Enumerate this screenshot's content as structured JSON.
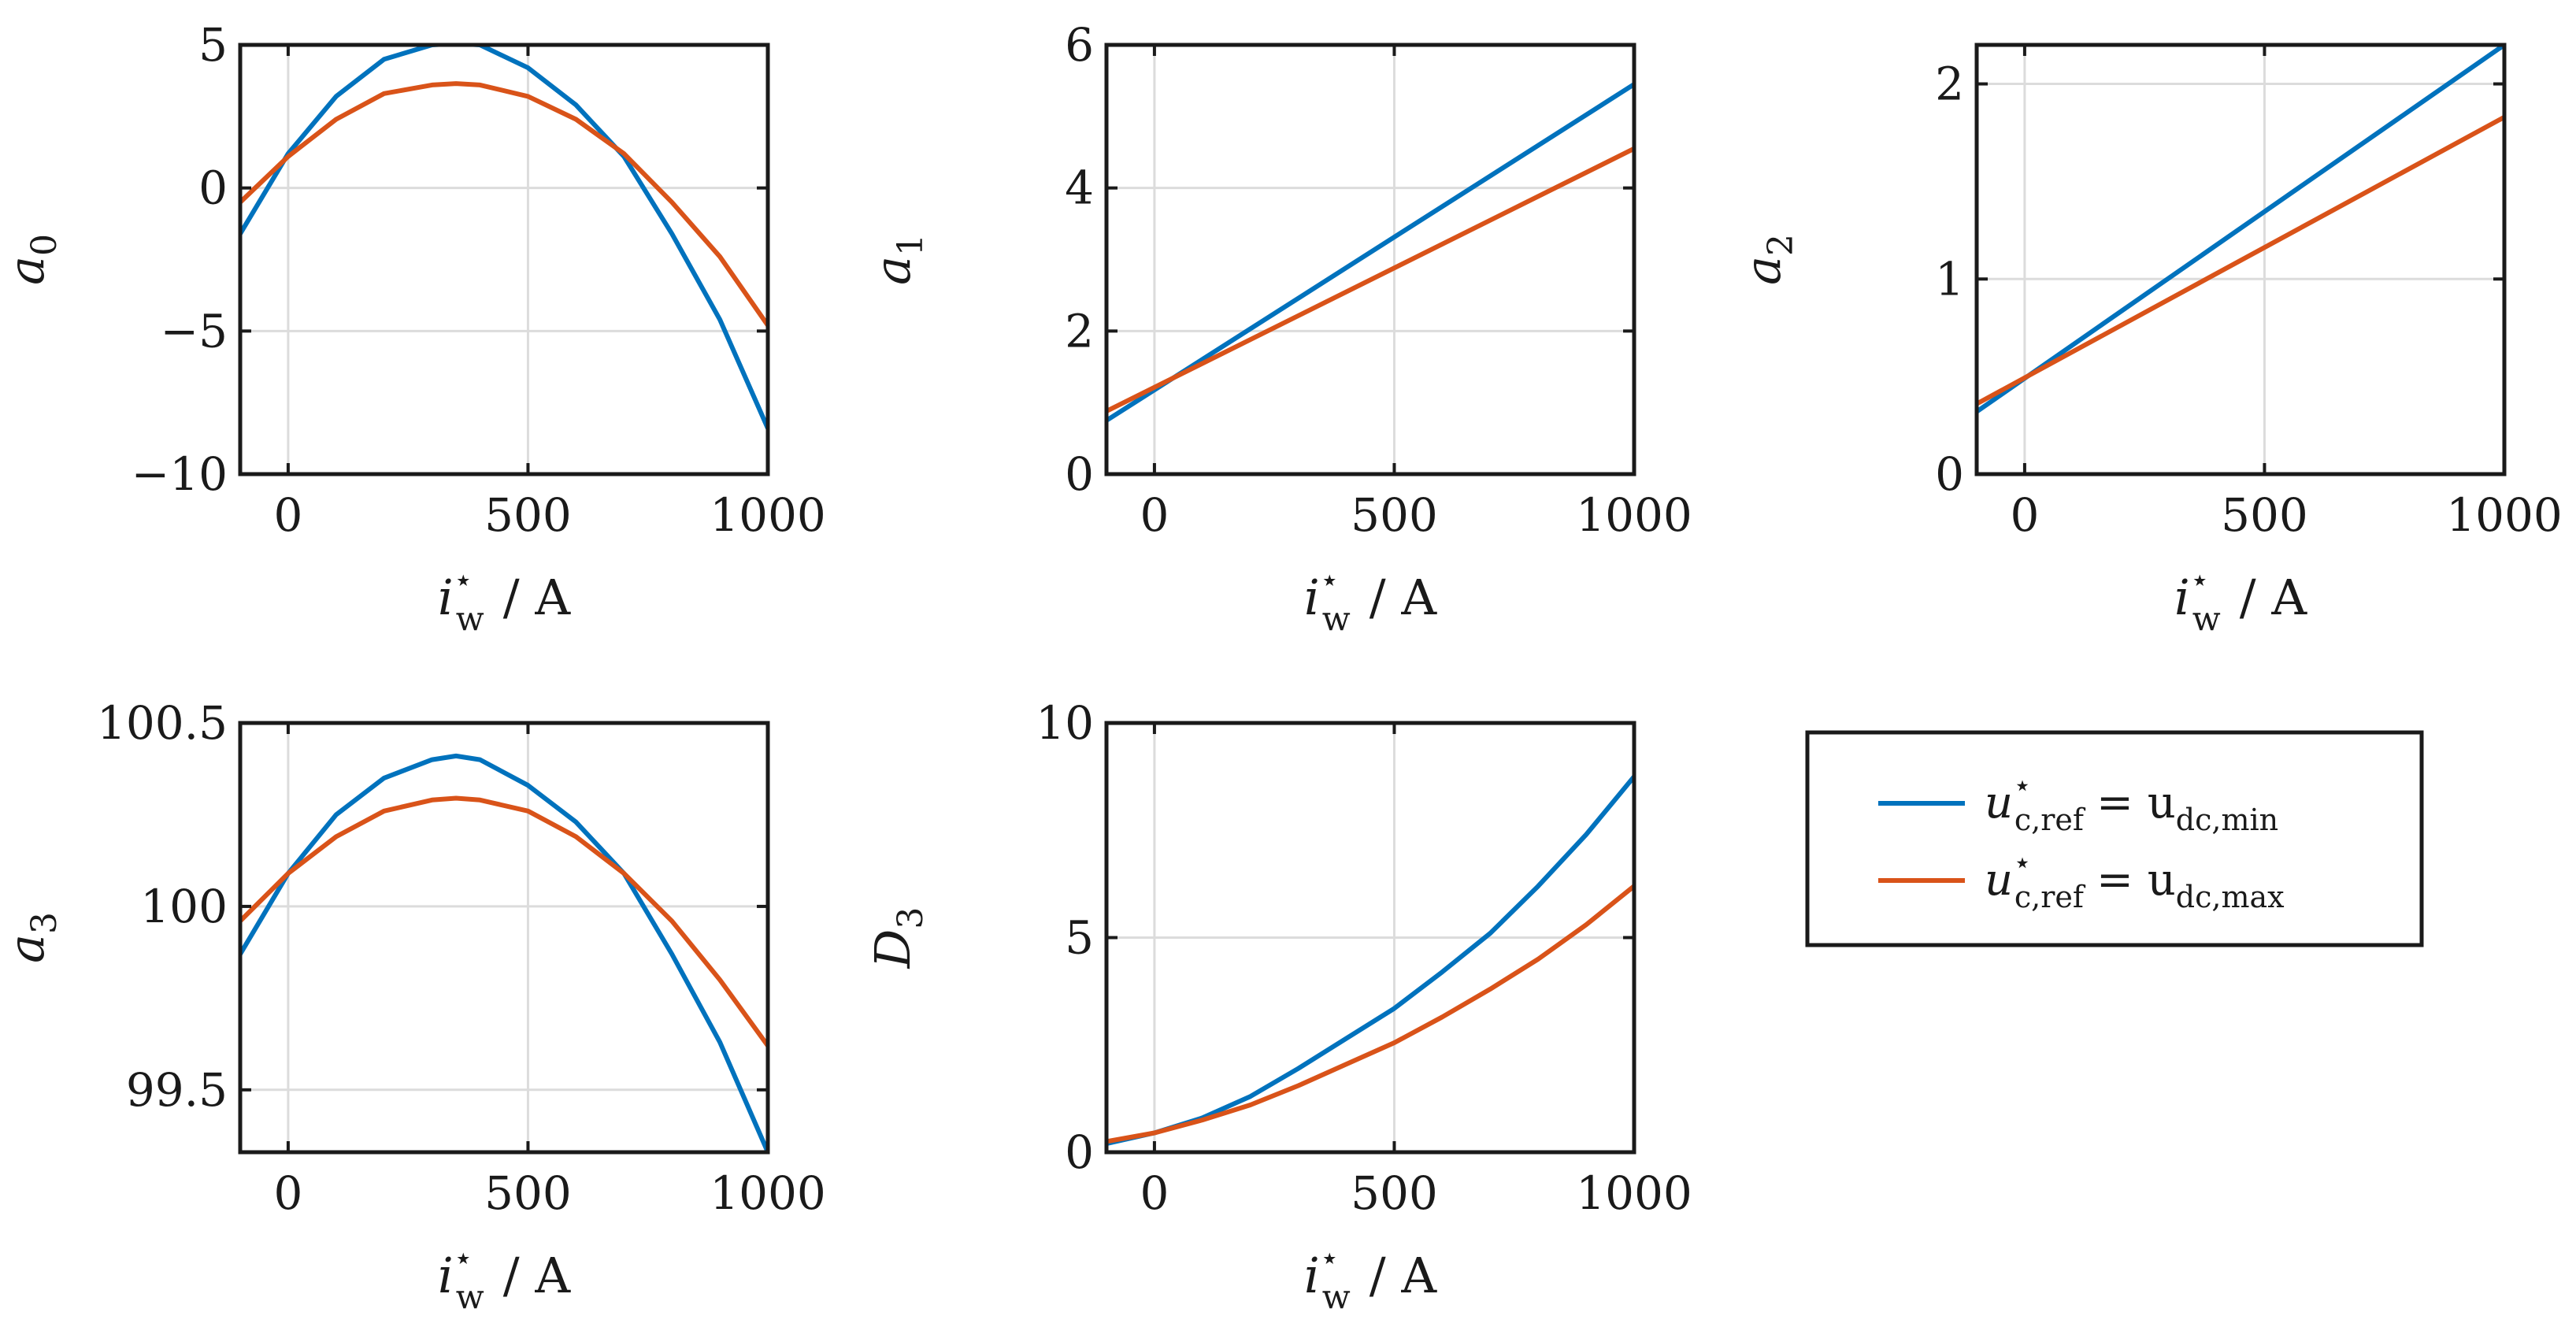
{
  "figure": {
    "legend": {
      "placement": "right, lower row",
      "entries": [
        {
          "symbol": "u",
          "sup": "⋆",
          "sub": "c,ref",
          "eq": "= u",
          "rsub": "dc,min",
          "color": "#0072BD"
        },
        {
          "symbol": "u",
          "sup": "⋆",
          "sub": "c,ref",
          "eq": "= u",
          "rsub": "dc,max",
          "color": "#D95319"
        }
      ]
    },
    "xlabel": {
      "symbol": "i",
      "sup": "⋆",
      "sub": "w",
      "unit": "/ A"
    }
  },
  "chart_data": [
    {
      "type": "line",
      "id": "a0",
      "ylabel": {
        "symbol": "a",
        "sub": "0"
      },
      "xlim": [
        -100,
        1000
      ],
      "ylim": [
        -10,
        5
      ],
      "xticks": [
        0,
        500,
        1000
      ],
      "xtick_labels": [
        "0",
        "500",
        "1000"
      ],
      "yticks": [
        -10,
        -5,
        0,
        5
      ],
      "ytick_labels": [
        "−10",
        "−5",
        "0",
        "5"
      ],
      "grid": true,
      "series": [
        {
          "name": "u*c,ref = udc,min",
          "color": "#0072BD",
          "x": [
            -100,
            0,
            100,
            200,
            300,
            350,
            400,
            500,
            600,
            700,
            800,
            900,
            1000
          ],
          "y": [
            -1.6,
            1.2,
            3.2,
            4.5,
            5.0,
            5.05,
            5.0,
            4.2,
            2.9,
            1.1,
            -1.6,
            -4.6,
            -8.4
          ]
        },
        {
          "name": "u*c,ref = udc,max",
          "color": "#D95319",
          "x": [
            -100,
            0,
            100,
            200,
            300,
            350,
            400,
            500,
            600,
            700,
            800,
            900,
            1000
          ],
          "y": [
            -0.5,
            1.1,
            2.4,
            3.3,
            3.6,
            3.65,
            3.6,
            3.2,
            2.4,
            1.2,
            -0.5,
            -2.4,
            -4.8
          ]
        }
      ]
    },
    {
      "type": "line",
      "id": "a1",
      "ylabel": {
        "symbol": "a",
        "sub": "1"
      },
      "xlim": [
        -100,
        1000
      ],
      "ylim": [
        0,
        6
      ],
      "xticks": [
        0,
        500,
        1000
      ],
      "xtick_labels": [
        "0",
        "500",
        "1000"
      ],
      "yticks": [
        0,
        2,
        4,
        6
      ],
      "ytick_labels": [
        "0",
        "2",
        "4",
        "6"
      ],
      "grid": true,
      "series": [
        {
          "name": "u*c,ref = udc,min",
          "color": "#0072BD",
          "x": [
            -100,
            1000
          ],
          "y": [
            0.75,
            5.45
          ]
        },
        {
          "name": "u*c,ref = udc,max",
          "color": "#D95319",
          "x": [
            -100,
            1000
          ],
          "y": [
            0.88,
            4.55
          ]
        }
      ]
    },
    {
      "type": "line",
      "id": "a2",
      "ylabel": {
        "symbol": "a",
        "sub": "2"
      },
      "xlim": [
        -100,
        1000
      ],
      "ylim": [
        0,
        2.2
      ],
      "xticks": [
        0,
        500,
        1000
      ],
      "xtick_labels": [
        "0",
        "500",
        "1000"
      ],
      "yticks": [
        0,
        1,
        2
      ],
      "ytick_labels": [
        "0",
        "1",
        "2"
      ],
      "grid": true,
      "series": [
        {
          "name": "u*c,ref = udc,min",
          "color": "#0072BD",
          "x": [
            -100,
            1000
          ],
          "y": [
            0.32,
            2.2
          ]
        },
        {
          "name": "u*c,ref = udc,max",
          "color": "#D95319",
          "x": [
            -100,
            1000
          ],
          "y": [
            0.36,
            1.83
          ]
        }
      ]
    },
    {
      "type": "line",
      "id": "a3",
      "ylabel": {
        "symbol": "a",
        "sub": "3"
      },
      "xlim": [
        -100,
        1000
      ],
      "ylim": [
        99.33,
        100.5
      ],
      "xticks": [
        0,
        500,
        1000
      ],
      "xtick_labels": [
        "0",
        "500",
        "1000"
      ],
      "yticks": [
        99.5,
        100,
        100.5
      ],
      "ytick_labels": [
        "99.5",
        "100",
        "100.5"
      ],
      "grid": true,
      "series": [
        {
          "name": "u*c,ref = udc,min",
          "color": "#0072BD",
          "x": [
            -100,
            0,
            100,
            200,
            300,
            350,
            400,
            500,
            600,
            700,
            800,
            900,
            1000
          ],
          "y": [
            99.87,
            100.09,
            100.25,
            100.35,
            100.4,
            100.41,
            100.4,
            100.33,
            100.23,
            100.09,
            99.87,
            99.63,
            99.33
          ]
        },
        {
          "name": "u*c,ref = udc,max",
          "color": "#D95319",
          "x": [
            -100,
            0,
            100,
            200,
            300,
            350,
            400,
            500,
            600,
            700,
            800,
            900,
            1000
          ],
          "y": [
            99.96,
            100.09,
            100.19,
            100.26,
            100.29,
            100.295,
            100.29,
            100.26,
            100.19,
            100.09,
            99.96,
            99.8,
            99.62
          ]
        }
      ]
    },
    {
      "type": "line",
      "id": "D3",
      "ylabel": {
        "symbol": "D",
        "sub": "3"
      },
      "xlim": [
        -100,
        1000
      ],
      "ylim": [
        0,
        10
      ],
      "xticks": [
        0,
        500,
        1000
      ],
      "xtick_labels": [
        "0",
        "500",
        "1000"
      ],
      "yticks": [
        0,
        5,
        10
      ],
      "ytick_labels": [
        "0",
        "5",
        "10"
      ],
      "grid": true,
      "series": [
        {
          "name": "u*c,ref = udc,min",
          "color": "#0072BD",
          "x": [
            -100,
            0,
            100,
            200,
            300,
            400,
            500,
            600,
            700,
            800,
            900,
            1000
          ],
          "y": [
            0.2,
            0.45,
            0.8,
            1.3,
            1.95,
            2.65,
            3.35,
            4.2,
            5.1,
            6.2,
            7.4,
            8.75
          ]
        },
        {
          "name": "u*c,ref = udc,max",
          "color": "#D95319",
          "x": [
            -100,
            0,
            100,
            200,
            300,
            400,
            500,
            600,
            700,
            800,
            900,
            1000
          ],
          "y": [
            0.25,
            0.45,
            0.75,
            1.1,
            1.55,
            2.05,
            2.55,
            3.15,
            3.8,
            4.5,
            5.3,
            6.2
          ]
        }
      ]
    }
  ]
}
